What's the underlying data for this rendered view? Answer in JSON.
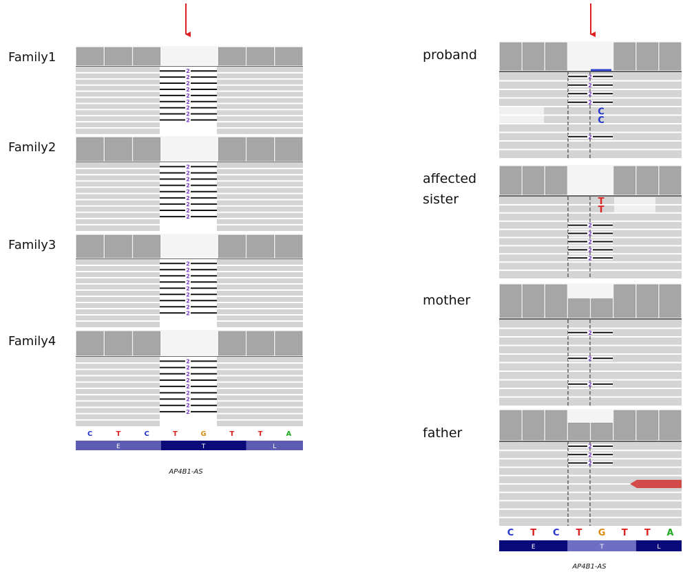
{
  "left_panel": {
    "samples": [
      "Family1",
      "Family2",
      "Family3",
      "Family4"
    ],
    "deletion_label": "2",
    "reference_bases": [
      "C",
      "T",
      "C",
      "T",
      "G",
      "T",
      "T",
      "A"
    ],
    "amino_acids": [
      "E",
      "T",
      "L"
    ],
    "gene": "AP4B1-AS"
  },
  "right_panel": {
    "samples": [
      {
        "label": [
          "proband"
        ],
        "read_bases": [
          "C",
          "C"
        ]
      },
      {
        "label": [
          "affected",
          "sister"
        ],
        "read_bases": [
          "T",
          "T"
        ]
      },
      {
        "label": [
          "mother"
        ]
      },
      {
        "label": [
          "father"
        ]
      }
    ],
    "deletion_label": "2",
    "reference_bases": [
      "C",
      "T",
      "C",
      "T",
      "G",
      "T",
      "T",
      "A"
    ],
    "amino_acids": [
      "E",
      "T",
      "L"
    ],
    "gene": "AP4B1-AS"
  }
}
